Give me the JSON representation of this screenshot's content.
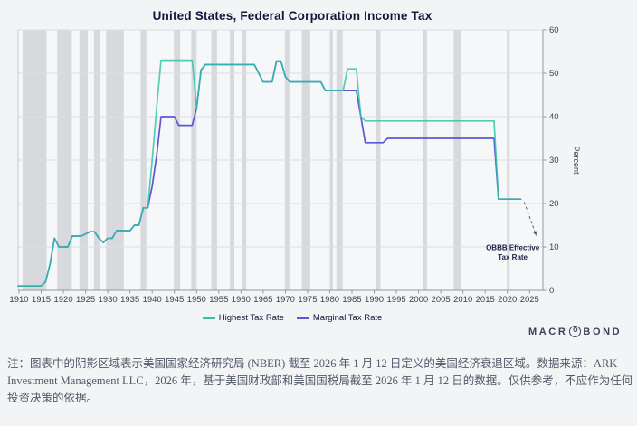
{
  "title": "United States, Federal Corporation Income Tax",
  "legend": [
    {
      "label": "Highest Tax Rate",
      "color": "#2ec4a6"
    },
    {
      "label": "Marginal Tax Rate",
      "color": "#5b58d6"
    }
  ],
  "logo": {
    "pre": "MACR",
    "o": "O",
    "post": "BOND"
  },
  "note": "注：图表中的阴影区域表示美国国家经济研究局 (NBER) 截至 2026 年 1 月 12 日定义的美国经济衰退区域。数据来源：ARK Investment Management LLC，2026 年，基于美国财政部和美国国税局截至 2026 年 1 月 12 日的数据。仅供参考，不应作为任何投资决策的依据。",
  "chart_data": {
    "type": "line",
    "title": "United States, Federal Corporation Income Tax",
    "ylabel": "Percent",
    "x_domain": [
      1909.8,
      2028
    ],
    "y_domain": [
      0,
      60
    ],
    "x_ticks": [
      1910,
      1915,
      1920,
      1925,
      1930,
      1935,
      1940,
      1945,
      1950,
      1955,
      1960,
      1965,
      1970,
      1975,
      1980,
      1985,
      1990,
      1995,
      2000,
      2005,
      2010,
      2015,
      2020,
      2025
    ],
    "y_ticks": [
      0,
      10,
      20,
      30,
      40,
      50,
      60
    ],
    "grid": true,
    "legend_position": "bottom",
    "band_color": "#d8d9dc",
    "plot_bg": "#f6f7f9",
    "grid_color": "#dbdee3",
    "axis_color": "#9199a6",
    "left_axis_color": "#c3c7cf",
    "tick_text_color": "#3a4150",
    "recession_bands": [
      [
        1910.8,
        1916.2
      ],
      [
        1918.6,
        1921.9
      ],
      [
        1923.6,
        1925.5
      ],
      [
        1926.9,
        1928.2
      ],
      [
        1929.6,
        1933.6
      ],
      [
        1937.4,
        1938.7
      ],
      [
        1944.9,
        1946.3
      ],
      [
        1948.8,
        1950.0
      ],
      [
        1953.3,
        1954.6
      ],
      [
        1957.5,
        1958.5
      ],
      [
        1960.2,
        1961.2
      ],
      [
        1969.9,
        1970.9
      ],
      [
        1973.7,
        1975.6
      ],
      [
        1980.0,
        1980.7
      ],
      [
        1981.5,
        1982.9
      ],
      [
        1990.4,
        1991.4
      ],
      [
        2001.1,
        2001.9
      ],
      [
        2007.9,
        2009.5
      ],
      [
        2019.9,
        2020.5
      ]
    ],
    "series": [
      {
        "name": "Marginal Tax Rate",
        "color": "#5b58d6",
        "opacity": 1,
        "points": [
          [
            1909,
            1
          ],
          [
            1915,
            1
          ],
          [
            1916,
            2
          ],
          [
            1917,
            6
          ],
          [
            1918,
            12
          ],
          [
            1919,
            10
          ],
          [
            1921,
            10
          ],
          [
            1922,
            12.5
          ],
          [
            1924,
            12.5
          ],
          [
            1925,
            13
          ],
          [
            1926,
            13.5
          ],
          [
            1927,
            13.5
          ],
          [
            1928,
            12
          ],
          [
            1929,
            11
          ],
          [
            1930,
            12
          ],
          [
            1931,
            12
          ],
          [
            1932,
            13.75
          ],
          [
            1935,
            13.75
          ],
          [
            1936,
            15
          ],
          [
            1937,
            15
          ],
          [
            1938,
            19
          ],
          [
            1939,
            19
          ],
          [
            1940,
            24
          ],
          [
            1941,
            31
          ],
          [
            1942,
            40
          ],
          [
            1945,
            40
          ],
          [
            1946,
            38
          ],
          [
            1949,
            38
          ],
          [
            1950,
            42
          ],
          [
            1951,
            50.75
          ],
          [
            1952,
            52
          ],
          [
            1963,
            52
          ],
          [
            1964,
            50
          ],
          [
            1965,
            48
          ],
          [
            1967,
            48
          ],
          [
            1968,
            52.8
          ],
          [
            1969,
            52.8
          ],
          [
            1970,
            49.2
          ],
          [
            1971,
            48
          ],
          [
            1978,
            48
          ],
          [
            1979,
            46
          ],
          [
            1986,
            46
          ],
          [
            1987,
            40
          ],
          [
            1988,
            34
          ],
          [
            1992,
            34
          ],
          [
            1993,
            35
          ],
          [
            2017,
            35
          ],
          [
            2018,
            21
          ],
          [
            2023,
            21
          ]
        ]
      },
      {
        "name": "Highest Tax Rate",
        "color": "#2ec4a6",
        "opacity": 0.82,
        "points": [
          [
            1909,
            1
          ],
          [
            1915,
            1
          ],
          [
            1916,
            2
          ],
          [
            1917,
            6
          ],
          [
            1918,
            12
          ],
          [
            1919,
            10
          ],
          [
            1921,
            10
          ],
          [
            1922,
            12.5
          ],
          [
            1924,
            12.5
          ],
          [
            1925,
            13
          ],
          [
            1926,
            13.5
          ],
          [
            1927,
            13.5
          ],
          [
            1928,
            12
          ],
          [
            1929,
            11
          ],
          [
            1930,
            12
          ],
          [
            1931,
            12
          ],
          [
            1932,
            13.75
          ],
          [
            1935,
            13.75
          ],
          [
            1936,
            15
          ],
          [
            1937,
            15
          ],
          [
            1938,
            19
          ],
          [
            1939,
            19
          ],
          [
            1940,
            30
          ],
          [
            1941,
            42
          ],
          [
            1942,
            53
          ],
          [
            1949,
            53
          ],
          [
            1950,
            42
          ],
          [
            1951,
            50.75
          ],
          [
            1952,
            52
          ],
          [
            1963,
            52
          ],
          [
            1964,
            50
          ],
          [
            1965,
            48
          ],
          [
            1967,
            48
          ],
          [
            1968,
            52.8
          ],
          [
            1969,
            52.8
          ],
          [
            1970,
            49.2
          ],
          [
            1971,
            48
          ],
          [
            1978,
            48
          ],
          [
            1979,
            46
          ],
          [
            1983,
            46
          ],
          [
            1984,
            51
          ],
          [
            1986,
            51
          ],
          [
            1987,
            40
          ],
          [
            1988,
            39
          ],
          [
            2017,
            39
          ],
          [
            2018,
            21
          ],
          [
            2023,
            21
          ]
        ]
      }
    ],
    "annotation": {
      "text": [
        "OBBB Effective",
        "Tax Rate"
      ],
      "text_color": "#1a2143",
      "arrow_color": "#50555e",
      "arrow_from": [
        2023.8,
        20.3
      ],
      "arrow_to": [
        2026.5,
        12.6
      ],
      "label_at": [
        2021.2,
        9.3
      ]
    }
  }
}
